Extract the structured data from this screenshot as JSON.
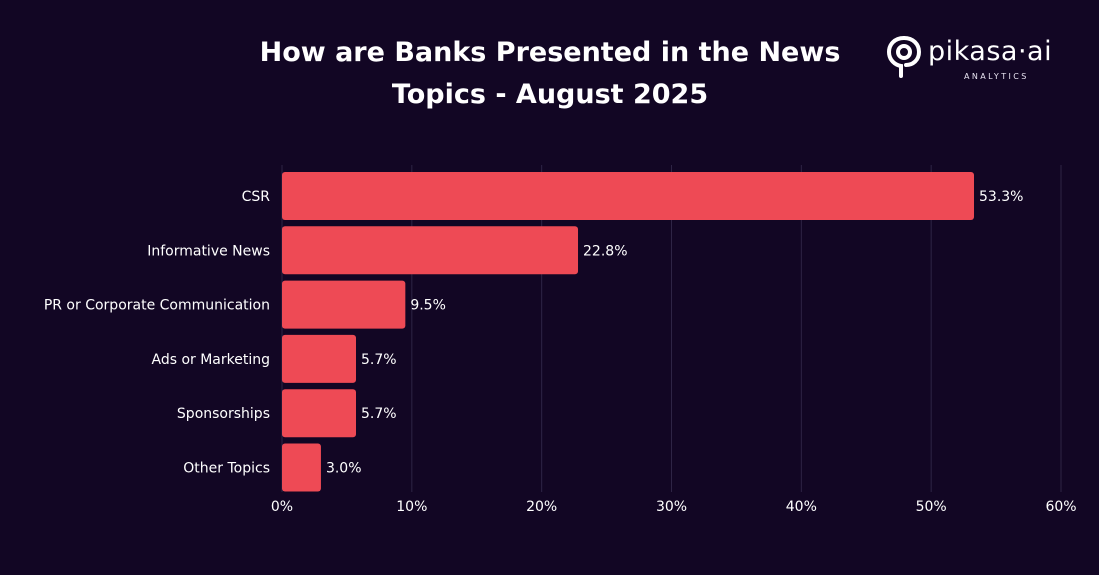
{
  "title_line1": "How are Banks Presented in the News",
  "title_line2": "Topics - August 2025",
  "logo": {
    "wordmark": "pikasa·ai",
    "subtitle": "ANALYTICS"
  },
  "colors": {
    "background": "#120624",
    "bar": "#ee4a55",
    "grid": "#2e2445",
    "text": "#ffffff"
  },
  "chart_data": {
    "type": "bar",
    "orientation": "horizontal",
    "title": "How are Banks Presented in the News Topics - August 2025",
    "categories": [
      "CSR",
      "Informative News",
      "PR or Corporate Communication",
      "Ads or Marketing",
      "Sponsorships",
      "Other Topics"
    ],
    "values": [
      53.3,
      22.8,
      9.5,
      5.7,
      5.7,
      3.0
    ],
    "value_labels": [
      "53.3%",
      "22.8%",
      "9.5%",
      "5.7%",
      "5.7%",
      "3.0%"
    ],
    "x_ticks": [
      0,
      10,
      20,
      30,
      40,
      50,
      60
    ],
    "x_tick_labels": [
      "0%",
      "10%",
      "20%",
      "30%",
      "40%",
      "50%",
      "60%"
    ],
    "xlim": [
      0,
      60
    ],
    "grid": "vertical",
    "xlabel": "",
    "ylabel": ""
  }
}
